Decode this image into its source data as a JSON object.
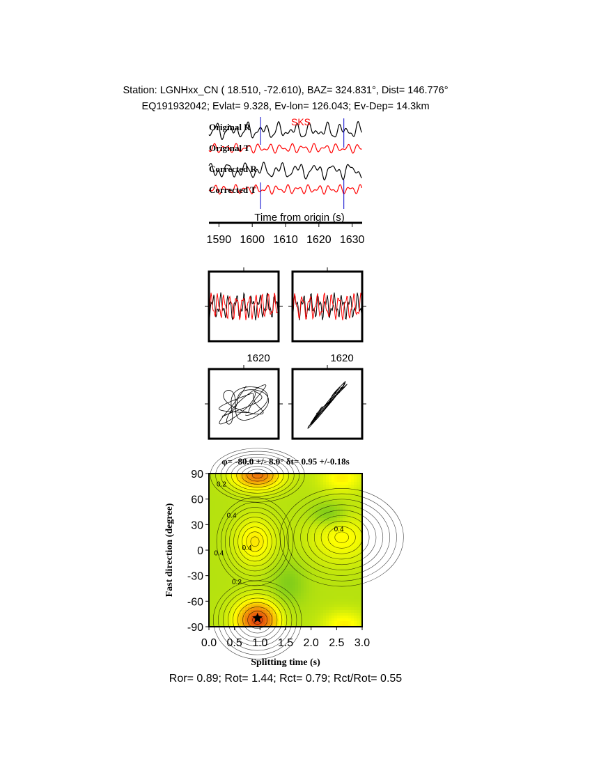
{
  "header": {
    "line1": "Station: LGNHxx_CN (  18.510,  -72.610), BAZ=  324.831°, Dist=  146.776°",
    "line2": "EQ191932042; Evlat=   9.328, Ev-lon= 126.043; Ev-Dep= 14.3km"
  },
  "traces": {
    "labels": [
      "Original R",
      "Original T",
      "Corrected R",
      "Corrected T"
    ],
    "phase": "SKS",
    "time_label": "Time from origin (s)",
    "ticks": [
      "1590",
      "1600",
      "1610",
      "1620",
      "1630"
    ]
  },
  "panels": {
    "tick_left": "1620",
    "tick_right": "1620"
  },
  "grid": {
    "title": "φ= -80.0 +/- 8.0° δt= 0.95 +/-0.18s",
    "xlabel": "Splitting time (s)",
    "ylabel": "Fast direction (degree)",
    "xticks": [
      "0.0",
      "0.5",
      "1.0",
      "1.5",
      "2.0",
      "2.5",
      "3.0"
    ],
    "yticks": [
      "90",
      "60",
      "30",
      "0",
      "-30",
      "-60",
      "-90"
    ],
    "contour_labels": [
      "0.2",
      "0.4",
      "0.4",
      "0.4",
      "0.4",
      "0.2"
    ]
  },
  "footer": "Ror= 0.89; Rot= 1.44; Rct= 0.79; Rct/Rot= 0.55",
  "chart_data": [
    {
      "type": "line",
      "title": "",
      "xlabel": "Time from origin (s)",
      "ylabel": "",
      "x_range": [
        1587,
        1633
      ],
      "series": [
        {
          "name": "Original R",
          "color": "#000000"
        },
        {
          "name": "Original T",
          "color": "#ff0000"
        },
        {
          "name": "Corrected R",
          "color": "#000000"
        },
        {
          "name": "Corrected T",
          "color": "#ff0000"
        }
      ],
      "markers": {
        "phase": "SKS",
        "window_start": 1602.5,
        "window_end": 1627.5
      }
    },
    {
      "type": "heatmap",
      "title": "φ= -80.0 +/- 8.0° δt= 0.95 +/-0.18s",
      "xlabel": "Splitting time (s)",
      "ylabel": "Fast direction (degree)",
      "xlim": [
        0,
        3
      ],
      "ylim": [
        -90,
        90
      ],
      "best_fit": {
        "dt": 0.95,
        "phi": -80
      },
      "colors": {
        "low": "#e02010",
        "mid": "#ffff00",
        "high": "#10a030"
      }
    }
  ]
}
